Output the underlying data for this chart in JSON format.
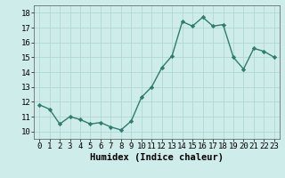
{
  "x": [
    0,
    1,
    2,
    3,
    4,
    5,
    6,
    7,
    8,
    9,
    10,
    11,
    12,
    13,
    14,
    15,
    16,
    17,
    18,
    19,
    20,
    21,
    22,
    23
  ],
  "y": [
    11.8,
    11.5,
    10.5,
    11.0,
    10.8,
    10.5,
    10.6,
    10.3,
    10.1,
    10.7,
    12.3,
    13.0,
    14.3,
    15.1,
    17.4,
    17.1,
    17.7,
    17.1,
    17.2,
    15.0,
    14.2,
    15.6,
    15.4,
    15.0
  ],
  "line_color": "#2e7d6e",
  "marker": "D",
  "marker_size": 2.2,
  "bg_color": "#ceecea",
  "grid_color": "#b0d8d4",
  "xlabel": "Humidex (Indice chaleur)",
  "ylim": [
    9.5,
    18.5
  ],
  "xlim": [
    -0.5,
    23.5
  ],
  "yticks": [
    10,
    11,
    12,
    13,
    14,
    15,
    16,
    17,
    18
  ],
  "xticks": [
    0,
    1,
    2,
    3,
    4,
    5,
    6,
    7,
    8,
    9,
    10,
    11,
    12,
    13,
    14,
    15,
    16,
    17,
    18,
    19,
    20,
    21,
    22,
    23
  ],
  "xlabel_fontsize": 7.5,
  "tick_fontsize": 6.5,
  "linewidth": 1.0
}
